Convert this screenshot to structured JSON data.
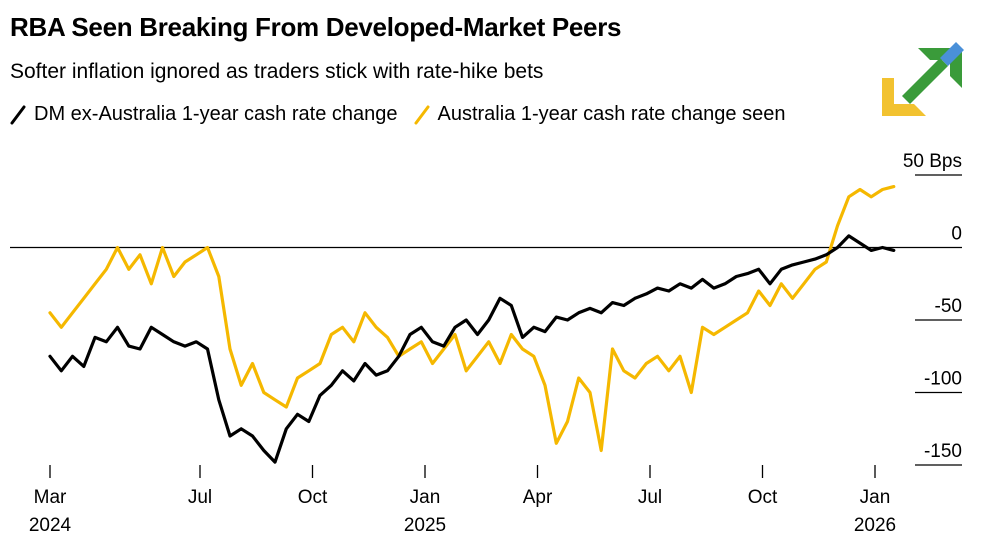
{
  "title": "RBA Seen Breaking From Developed-Market Peers",
  "subtitle": "Softer inflation ignored as traders stick with rate-hike bets",
  "logo": {
    "icon": "brand-logo-icon",
    "colors": [
      "#f2c230",
      "#3a9b3a",
      "#4a90d9"
    ]
  },
  "chart_data": {
    "type": "line",
    "title": "RBA Seen Breaking From Developed-Market Peers",
    "subtitle": "Softer inflation ignored as traders stick with rate-hike bets",
    "xlabel": "",
    "ylabel": "Bps",
    "ylim": [
      -150,
      50
    ],
    "xlim": [
      0,
      22.8
    ],
    "y_unit_label": "50 Bps",
    "y_ticks": [
      {
        "value": 50,
        "label": "50 Bps"
      },
      {
        "value": 0,
        "label": "0"
      },
      {
        "value": -50,
        "label": "-50"
      },
      {
        "value": -100,
        "label": "-100"
      },
      {
        "value": -150,
        "label": "-150"
      }
    ],
    "x_ticks": [
      {
        "value": 0,
        "label": "Mar",
        "year": "2024"
      },
      {
        "value": 4,
        "label": "Jul",
        "year": ""
      },
      {
        "value": 7,
        "label": "Oct",
        "year": ""
      },
      {
        "value": 10,
        "label": "Jan",
        "year": "2025"
      },
      {
        "value": 13,
        "label": "Apr",
        "year": ""
      },
      {
        "value": 16,
        "label": "Jul",
        "year": ""
      },
      {
        "value": 19,
        "label": "Oct",
        "year": ""
      },
      {
        "value": 22,
        "label": "Jan",
        "year": "2026"
      }
    ],
    "zero_line": 0,
    "series": [
      {
        "name": "DM ex-Australia 1-year cash rate change",
        "color": "#000000",
        "x": [
          0,
          0.3,
          0.6,
          0.9,
          1.2,
          1.5,
          1.8,
          2.1,
          2.4,
          2.7,
          3.0,
          3.3,
          3.6,
          3.9,
          4.2,
          4.5,
          4.8,
          5.1,
          5.4,
          5.7,
          6.0,
          6.3,
          6.6,
          6.9,
          7.2,
          7.5,
          7.8,
          8.1,
          8.4,
          8.7,
          9.0,
          9.3,
          9.6,
          9.9,
          10.2,
          10.5,
          10.8,
          11.1,
          11.4,
          11.7,
          12.0,
          12.3,
          12.6,
          12.9,
          13.2,
          13.5,
          13.8,
          14.1,
          14.4,
          14.7,
          15.0,
          15.3,
          15.6,
          15.9,
          16.2,
          16.5,
          16.8,
          17.1,
          17.4,
          17.7,
          18.0,
          18.3,
          18.6,
          18.9,
          19.2,
          19.5,
          19.8,
          20.1,
          20.4,
          20.7,
          21.0,
          21.3,
          21.6,
          21.9,
          22.2,
          22.5
        ],
        "values": [
          -75,
          -85,
          -75,
          -82,
          -62,
          -65,
          -55,
          -68,
          -70,
          -55,
          -60,
          -65,
          -68,
          -65,
          -70,
          -105,
          -130,
          -125,
          -130,
          -140,
          -148,
          -125,
          -115,
          -120,
          -102,
          -95,
          -85,
          -92,
          -80,
          -88,
          -85,
          -75,
          -60,
          -55,
          -65,
          -68,
          -55,
          -50,
          -60,
          -50,
          -35,
          -40,
          -62,
          -55,
          -58,
          -48,
          -50,
          -45,
          -42,
          -45,
          -38,
          -40,
          -35,
          -32,
          -28,
          -30,
          -25,
          -28,
          -22,
          -28,
          -25,
          -20,
          -18,
          -15,
          -25,
          -15,
          -12,
          -10,
          -8,
          -5,
          0,
          8,
          3,
          -2,
          0,
          -2
        ]
      },
      {
        "name": "Australia 1-year cash rate change seen",
        "color": "#f5b800",
        "x": [
          0,
          0.3,
          0.6,
          0.9,
          1.2,
          1.5,
          1.8,
          2.1,
          2.4,
          2.7,
          3.0,
          3.3,
          3.6,
          3.9,
          4.2,
          4.5,
          4.8,
          5.1,
          5.4,
          5.7,
          6.0,
          6.3,
          6.6,
          6.9,
          7.2,
          7.5,
          7.8,
          8.1,
          8.4,
          8.7,
          9.0,
          9.3,
          9.6,
          9.9,
          10.2,
          10.5,
          10.8,
          11.1,
          11.4,
          11.7,
          12.0,
          12.3,
          12.6,
          12.9,
          13.2,
          13.5,
          13.8,
          14.1,
          14.4,
          14.7,
          15.0,
          15.3,
          15.6,
          15.9,
          16.2,
          16.5,
          16.8,
          17.1,
          17.4,
          17.7,
          18.0,
          18.3,
          18.6,
          18.9,
          19.2,
          19.5,
          19.8,
          20.1,
          20.4,
          20.7,
          21.0,
          21.3,
          21.6,
          21.9,
          22.2,
          22.5
        ],
        "values": [
          -45,
          -55,
          -45,
          -35,
          -25,
          -15,
          0,
          -15,
          -5,
          -25,
          0,
          -20,
          -10,
          -5,
          0,
          -20,
          -70,
          -95,
          -80,
          -100,
          -105,
          -110,
          -90,
          -85,
          -80,
          -60,
          -55,
          -65,
          -45,
          -55,
          -62,
          -75,
          -70,
          -65,
          -80,
          -70,
          -60,
          -85,
          -75,
          -65,
          -80,
          -60,
          -70,
          -75,
          -95,
          -135,
          -120,
          -90,
          -100,
          -140,
          -70,
          -85,
          -90,
          -80,
          -75,
          -85,
          -75,
          -100,
          -55,
          -60,
          -55,
          -50,
          -45,
          -30,
          -40,
          -25,
          -35,
          -25,
          -15,
          -10,
          15,
          35,
          40,
          35,
          40,
          42
        ]
      }
    ]
  }
}
